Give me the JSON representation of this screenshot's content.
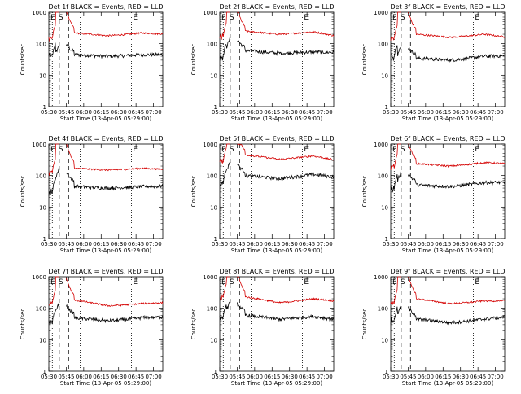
{
  "chart_data": [
    {
      "type": "line",
      "title": "Det 1f BLACK = Events, RED = LLD",
      "xlabel": "Start Time (13-Apr-05 05:29:00)",
      "ylabel": "Counts/sec",
      "yscale": "log",
      "ylim": [
        1,
        1000
      ],
      "xticks": [
        "05:30",
        "05:45",
        "06:00",
        "06:15",
        "06:30",
        "06:45",
        "07:00"
      ],
      "yticks": [
        "1",
        "10",
        "100",
        "1000"
      ],
      "markers": [
        "E",
        "S",
        "E"
      ],
      "series": [
        {
          "color": "#000000",
          "shape": "events",
          "level": [
            40,
            50,
            45,
            40,
            45,
            60
          ]
        },
        {
          "color": "#d40000",
          "shape": "lld",
          "level": [
            150,
            300,
            220,
            180,
            220,
            270
          ]
        }
      ]
    },
    {
      "type": "line",
      "title": "Det 2f BLACK = Events, RED = LLD",
      "xlabel": "Start Time (13-Apr-05 05:29:00)",
      "ylabel": "Counts/sec",
      "yscale": "log",
      "ylim": [
        1,
        1000
      ],
      "xticks": [
        "05:30",
        "05:45",
        "06:00",
        "06:15",
        "06:30",
        "06:45",
        "07:00"
      ],
      "yticks": [
        "1",
        "10",
        "100",
        "1000"
      ],
      "markers": [
        "E",
        "S",
        "E"
      ],
      "series": [
        {
          "color": "#000000",
          "shape": "events",
          "level": [
            40,
            80,
            60,
            50,
            55,
            70
          ]
        },
        {
          "color": "#d40000",
          "shape": "lld",
          "level": [
            170,
            330,
            250,
            200,
            240,
            240
          ]
        }
      ]
    },
    {
      "type": "line",
      "title": "Det 3f BLACK = Events, RED = LLD",
      "xlabel": "Start Time (13-Apr-05 05:29:00)",
      "ylabel": "Counts/sec",
      "yscale": "log",
      "ylim": [
        1,
        1000
      ],
      "xticks": [
        "05:30",
        "05:45",
        "06:00",
        "06:15",
        "06:30",
        "06:45",
        "07:00"
      ],
      "yticks": [
        "1",
        "10",
        "100",
        "1000"
      ],
      "markers": [
        "E",
        "S",
        "E"
      ],
      "series": [
        {
          "color": "#000000",
          "shape": "events",
          "level": [
            40,
            45,
            35,
            30,
            40,
            55
          ]
        },
        {
          "color": "#d40000",
          "shape": "lld",
          "level": [
            150,
            280,
            200,
            160,
            200,
            220
          ]
        }
      ]
    },
    {
      "type": "line",
      "title": "Det 4f BLACK = Events, RED = LLD",
      "xlabel": "Start Time (13-Apr-05 05:29:00)",
      "ylabel": "Counts/sec",
      "yscale": "log",
      "ylim": [
        1,
        1000
      ],
      "xticks": [
        "05:30",
        "05:45",
        "06:00",
        "06:15",
        "06:30",
        "06:45",
        "07:00"
      ],
      "yticks": [
        "1",
        "10",
        "100",
        "1000"
      ],
      "markers": [
        "E",
        "S",
        "E"
      ],
      "series": [
        {
          "color": "#000000",
          "shape": "events",
          "level": [
            30,
            90,
            45,
            40,
            45,
            60
          ]
        },
        {
          "color": "#d40000",
          "shape": "lld",
          "level": [
            130,
            300,
            170,
            150,
            170,
            210
          ]
        }
      ]
    },
    {
      "type": "line",
      "title": "Det 5f BLACK = Events, RED = LLD",
      "xlabel": "Start Time (13-Apr-05 05:29:00)",
      "ylabel": "Counts/sec",
      "yscale": "log",
      "ylim": [
        1,
        1000
      ],
      "xticks": [
        "05:30",
        "05:45",
        "06:00",
        "06:15",
        "06:30",
        "06:45",
        "07:00"
      ],
      "yticks": [
        "1",
        "10",
        "100",
        "1000"
      ],
      "markers": [
        "E",
        "S",
        "E"
      ],
      "series": [
        {
          "color": "#000000",
          "shape": "events",
          "level": [
            60,
            150,
            100,
            80,
            110,
            120
          ]
        },
        {
          "color": "#d40000",
          "shape": "lld",
          "level": [
            280,
            550,
            450,
            330,
            420,
            420
          ]
        }
      ]
    },
    {
      "type": "line",
      "title": "Det 6f BLACK = Events, RED = LLD",
      "xlabel": "Start Time (13-Apr-05 05:29:00)",
      "ylabel": "Counts/sec",
      "yscale": "log",
      "ylim": [
        1,
        1000
      ],
      "xticks": [
        "05:30",
        "05:45",
        "06:00",
        "06:15",
        "06:30",
        "06:45",
        "07:00"
      ],
      "yticks": [
        "1",
        "10",
        "100",
        "1000"
      ],
      "markers": [
        "E",
        "S",
        "E"
      ],
      "series": [
        {
          "color": "#000000",
          "shape": "events",
          "level": [
            40,
            70,
            50,
            45,
            60,
            80
          ]
        },
        {
          "color": "#d40000",
          "shape": "lld",
          "level": [
            180,
            300,
            240,
            200,
            260,
            320
          ]
        }
      ]
    },
    {
      "type": "line",
      "title": "Det 7f BLACK = Events, RED = LLD",
      "xlabel": "Start Time (13-Apr-05 05:29:00)",
      "ylabel": "Counts/sec",
      "yscale": "log",
      "ylim": [
        1,
        1000
      ],
      "xticks": [
        "05:30",
        "05:45",
        "06:00",
        "06:15",
        "06:30",
        "06:45",
        "07:00"
      ],
      "yticks": [
        "1",
        "10",
        "100",
        "1000"
      ],
      "markers": [
        "E",
        "S",
        "E"
      ],
      "series": [
        {
          "color": "#000000",
          "shape": "events",
          "level": [
            35,
            80,
            50,
            40,
            50,
            70
          ]
        },
        {
          "color": "#d40000",
          "shape": "lld",
          "level": [
            140,
            250,
            180,
            120,
            140,
            200
          ]
        }
      ]
    },
    {
      "type": "line",
      "title": "Det 8f BLACK = Events, RED = LLD",
      "xlabel": "Start Time (13-Apr-05 05:29:00)",
      "ylabel": "Counts/sec",
      "yscale": "log",
      "ylim": [
        1,
        1000
      ],
      "xticks": [
        "05:30",
        "05:45",
        "06:00",
        "06:15",
        "06:30",
        "06:45",
        "07:00"
      ],
      "yticks": [
        "1",
        "10",
        "100",
        "1000"
      ],
      "markers": [
        "E",
        "S",
        "E"
      ],
      "series": [
        {
          "color": "#000000",
          "shape": "events",
          "level": [
            50,
            90,
            60,
            45,
            55,
            60
          ]
        },
        {
          "color": "#d40000",
          "shape": "lld",
          "level": [
            220,
            350,
            230,
            150,
            200,
            230
          ]
        }
      ]
    },
    {
      "type": "line",
      "title": "Det 9f BLACK = Events, RED = LLD",
      "xlabel": "Start Time (13-Apr-05 05:29:00)",
      "ylabel": "Counts/sec",
      "yscale": "log",
      "ylim": [
        1,
        1000
      ],
      "xticks": [
        "05:30",
        "05:45",
        "06:00",
        "06:15",
        "06:30",
        "06:45",
        "07:00"
      ],
      "yticks": [
        "1",
        "10",
        "100",
        "1000"
      ],
      "markers": [
        "E",
        "S",
        "E"
      ],
      "series": [
        {
          "color": "#000000",
          "shape": "events",
          "level": [
            40,
            65,
            45,
            35,
            45,
            70
          ]
        },
        {
          "color": "#d40000",
          "shape": "lld",
          "level": [
            150,
            280,
            200,
            140,
            170,
            230
          ]
        }
      ]
    }
  ]
}
